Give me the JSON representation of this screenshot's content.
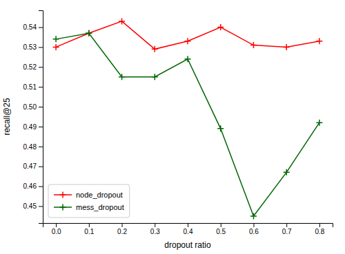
{
  "chart_data": {
    "type": "line",
    "xlabel": "dropout ratio",
    "ylabel": "recall@25",
    "x": [
      0.0,
      0.1,
      0.2,
      0.3,
      0.4,
      0.5,
      0.6,
      0.7,
      0.8
    ],
    "series": [
      {
        "name": "node_dropout",
        "color": "#ff0000",
        "marker": "plus",
        "values": [
          0.53,
          0.537,
          0.543,
          0.529,
          0.533,
          0.54,
          0.531,
          0.53,
          0.533
        ]
      },
      {
        "name": "mess_dropout",
        "color": "#006400",
        "marker": "plus",
        "values": [
          0.534,
          0.537,
          0.515,
          0.515,
          0.524,
          0.489,
          0.445,
          0.467,
          0.492
        ]
      }
    ],
    "xlim": [
      -0.04,
      0.84
    ],
    "xticks": [
      {
        "value": 0.0,
        "label": "0.0"
      },
      0.1,
      0.2,
      0.3,
      0.4,
      0.5,
      0.6,
      0.7,
      0.8
    ],
    "ylim": [
      0.4415,
      0.5485
    ],
    "yticks": [
      0.45,
      0.46,
      0.47,
      0.48,
      0.49,
      {
        "value": 0.5,
        "label": "0.50"
      },
      0.51,
      0.52,
      0.53,
      0.54
    ],
    "grid": false,
    "legend": "lower left"
  }
}
